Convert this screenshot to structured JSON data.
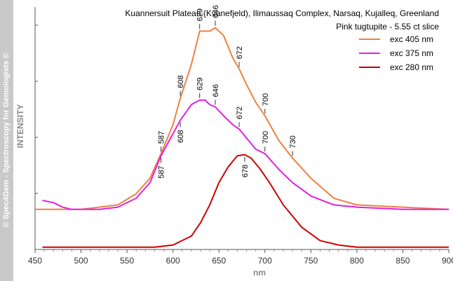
{
  "sidebar_text": "© Spec4Gem - Spectroscopy for Gemologists ©",
  "chart_data": {
    "type": "line",
    "title": "Kuannersuit Plateau (Kvanefjeld), Ilimaussaq Complex, Narsaq, Kujalleq, Greenland",
    "subtitle": "Pink tugtupite - 5.55 ct slice",
    "xlabel": "nm",
    "ylabel": "INTENSITY",
    "xlim": [
      450,
      900
    ],
    "ylim": [
      0,
      1
    ],
    "x_ticks": [
      "450",
      "500",
      "550",
      "600",
      "650",
      "700",
      "750",
      "800",
      "850",
      "900"
    ],
    "grid": false,
    "legend_position": "top-right",
    "series": [
      {
        "name": "exc 405 nm",
        "color": "#f08040",
        "x": [
          450,
          500,
          540,
          560,
          575,
          587,
          600,
          608,
          620,
          629,
          640,
          646,
          655,
          665,
          672,
          680,
          690,
          700,
          715,
          730,
          750,
          775,
          800,
          850,
          900
        ],
        "y": [
          0.18,
          0.18,
          0.2,
          0.25,
          0.32,
          0.43,
          0.56,
          0.68,
          0.83,
          0.98,
          0.98,
          0.995,
          0.96,
          0.86,
          0.81,
          0.74,
          0.66,
          0.6,
          0.49,
          0.41,
          0.32,
          0.23,
          0.2,
          0.19,
          0.18
        ]
      },
      {
        "name": "exc 375 nm",
        "color": "#e020e0",
        "x": [
          458,
          470,
          480,
          490,
          500,
          520,
          540,
          560,
          575,
          587,
          600,
          608,
          620,
          629,
          635,
          640,
          646,
          655,
          665,
          672,
          680,
          690,
          700,
          715,
          730,
          750,
          775,
          800,
          850,
          900
        ],
        "y": [
          0.22,
          0.21,
          0.19,
          0.18,
          0.18,
          0.18,
          0.19,
          0.23,
          0.3,
          0.42,
          0.52,
          0.58,
          0.65,
          0.67,
          0.67,
          0.65,
          0.64,
          0.6,
          0.56,
          0.54,
          0.5,
          0.45,
          0.43,
          0.36,
          0.3,
          0.24,
          0.2,
          0.19,
          0.18,
          0.18
        ]
      },
      {
        "name": "exc 280 nm",
        "color": "#cc0000",
        "x": [
          458,
          500,
          550,
          580,
          600,
          620,
          630,
          640,
          650,
          660,
          670,
          678,
          685,
          695,
          705,
          720,
          740,
          760,
          780,
          800,
          850,
          900
        ],
        "y": [
          0.01,
          0.01,
          0.01,
          0.01,
          0.02,
          0.06,
          0.12,
          0.2,
          0.3,
          0.37,
          0.42,
          0.425,
          0.41,
          0.36,
          0.3,
          0.2,
          0.1,
          0.04,
          0.02,
          0.01,
          0.01,
          0.01
        ]
      }
    ],
    "annotations": [
      {
        "text": "608",
        "x": 608,
        "y": 0.68,
        "series": "exc 405 nm",
        "side": "above"
      },
      {
        "text": "629",
        "x": 629,
        "y": 0.98,
        "series": "exc 405 nm",
        "side": "above"
      },
      {
        "text": "646",
        "x": 646,
        "y": 0.995,
        "series": "exc 405 nm",
        "side": "above"
      },
      {
        "text": "672",
        "x": 672,
        "y": 0.81,
        "series": "exc 405 nm",
        "side": "above"
      },
      {
        "text": "587",
        "x": 587,
        "y": 0.43,
        "series": "exc 405 nm",
        "side": "above"
      },
      {
        "text": "700",
        "x": 700,
        "y": 0.6,
        "series": "exc 405 nm",
        "side": "above"
      },
      {
        "text": "730",
        "x": 730,
        "y": 0.41,
        "series": "exc 405 nm",
        "side": "above"
      },
      {
        "text": "629",
        "x": 629,
        "y": 0.67,
        "series": "exc 375 nm",
        "side": "above"
      },
      {
        "text": "646",
        "x": 646,
        "y": 0.64,
        "series": "exc 375 nm",
        "side": "above"
      },
      {
        "text": "672",
        "x": 672,
        "y": 0.54,
        "series": "exc 375 nm",
        "side": "above"
      },
      {
        "text": "608",
        "x": 608,
        "y": 0.58,
        "series": "exc 375 nm",
        "side": "below"
      },
      {
        "text": "587",
        "x": 587,
        "y": 0.42,
        "series": "exc 375 nm",
        "side": "below"
      },
      {
        "text": "700",
        "x": 700,
        "y": 0.43,
        "series": "exc 375 nm",
        "side": "above"
      },
      {
        "text": "678",
        "x": 678,
        "y": 0.425,
        "series": "exc 280 nm",
        "side": "below"
      }
    ]
  }
}
